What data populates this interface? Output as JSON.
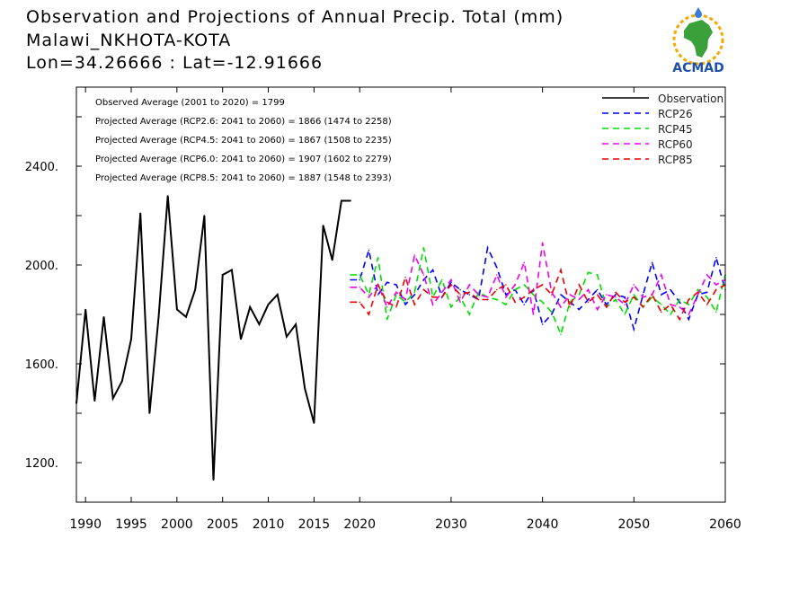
{
  "title": {
    "line1": "Observation and Projections of Annual Precip. Total (mm)",
    "line2": "Malawi_NKHOTA-KOTA",
    "line3": "Lon=34.26666 : Lat=-12.91666"
  },
  "logo": {
    "text": "ACMAD",
    "icon": "africa-map-logo-icon"
  },
  "info_lines": [
    "Observed Average (2001 to 2020) = 1799",
    "Projected Average (RCP2.6: 2041 to 2060) = 1866 (1474 to 2258)",
    "Projected Average (RCP4.5: 2041 to 2060) = 1867 (1508 to 2235)",
    "Projected Average (RCP6.0: 2041 to 2060) = 1907 (1602 to 2279)",
    "Projected Average (RCP8.5: 2041 to 2060) = 1887 (1548 to 2393)"
  ],
  "colors": {
    "Observation": "#000000",
    "RCP26": "#0000ff",
    "RCP45": "#00dd00",
    "RCP60": "#ee00ee",
    "RCP85": "#ee0000"
  },
  "chart_data": {
    "type": "line",
    "xlim": [
      1989,
      2060
    ],
    "ylim": [
      1040,
      2720
    ],
    "x_ticks": [
      1990,
      1995,
      2000,
      2005,
      2010,
      2015,
      2020,
      2030,
      2040,
      2050,
      2060
    ],
    "y_ticks": [
      1200,
      1600,
      2000,
      2400
    ],
    "y_tick_labels": [
      "1200.",
      "1600.",
      "2000.",
      "2400."
    ],
    "legend_position": "top-right",
    "grid": false,
    "series": [
      {
        "name": "Observation",
        "style": "solid",
        "x": [
          1989,
          1990,
          1991,
          1992,
          1993,
          1994,
          1995,
          1996,
          1997,
          1998,
          1999,
          2000,
          2001,
          2002,
          2003,
          2004,
          2005,
          2006,
          2007,
          2008,
          2009,
          2010,
          2011,
          2012,
          2013,
          2014,
          2015,
          2016,
          2017,
          2018,
          2019
        ],
        "values": [
          1440,
          1820,
          1450,
          1790,
          1460,
          1530,
          1700,
          2210,
          1400,
          1790,
          2280,
          1820,
          1790,
          1900,
          2200,
          1130,
          1960,
          1980,
          1700,
          1830,
          1760,
          1840,
          1880,
          1710,
          1760,
          1500,
          1360,
          2160,
          2020,
          2260,
          2260
        ]
      },
      {
        "name": "RCP26",
        "style": "dashed",
        "x": [
          2019,
          2020,
          2021,
          2022,
          2023,
          2024,
          2025,
          2026,
          2027,
          2028,
          2029,
          2030,
          2031,
          2032,
          2033,
          2034,
          2035,
          2036,
          2037,
          2038,
          2039,
          2040,
          2041,
          2042,
          2043,
          2044,
          2045,
          2046,
          2047,
          2048,
          2049,
          2050,
          2051,
          2052,
          2053,
          2054,
          2055,
          2056,
          2057,
          2058,
          2059,
          2060
        ],
        "values": [
          1940,
          1940,
          2060,
          1880,
          1930,
          1920,
          1840,
          1880,
          1940,
          1980,
          1870,
          1930,
          1900,
          1880,
          1860,
          2070,
          1990,
          1880,
          1900,
          1840,
          1900,
          1760,
          1800,
          1880,
          1850,
          1820,
          1860,
          1900,
          1840,
          1880,
          1870,
          1740,
          1880,
          2010,
          1880,
          1900,
          1850,
          1780,
          1880,
          1890,
          2030,
          1900
        ]
      },
      {
        "name": "RCP45",
        "style": "dashed",
        "x": [
          2019,
          2020,
          2021,
          2022,
          2023,
          2024,
          2025,
          2026,
          2027,
          2028,
          2029,
          2030,
          2031,
          2032,
          2033,
          2034,
          2035,
          2036,
          2037,
          2038,
          2039,
          2040,
          2041,
          2042,
          2043,
          2044,
          2045,
          2046,
          2047,
          2048,
          2049,
          2050,
          2051,
          2052,
          2053,
          2054,
          2055,
          2056,
          2057,
          2058,
          2059,
          2060
        ],
        "values": [
          1960,
          1960,
          1880,
          2030,
          1780,
          1880,
          1850,
          1890,
          2070,
          1870,
          1940,
          1830,
          1870,
          1800,
          1890,
          1870,
          1860,
          1840,
          1900,
          1920,
          1880,
          1850,
          1810,
          1720,
          1850,
          1880,
          1970,
          1960,
          1830,
          1860,
          1800,
          1880,
          1830,
          1870,
          1840,
          1800,
          1860,
          1840,
          1900,
          1870,
          1810,
          1960
        ]
      },
      {
        "name": "RCP60",
        "style": "dashed",
        "x": [
          2019,
          2020,
          2021,
          2022,
          2023,
          2024,
          2025,
          2026,
          2027,
          2028,
          2029,
          2030,
          2031,
          2032,
          2033,
          2034,
          2035,
          2036,
          2037,
          2038,
          2039,
          2040,
          2041,
          2042,
          2043,
          2044,
          2045,
          2046,
          2047,
          2048,
          2049,
          2050,
          2051,
          2052,
          2053,
          2054,
          2055,
          2056,
          2057,
          2058,
          2059,
          2060
        ],
        "values": [
          1910,
          1910,
          1870,
          1920,
          1830,
          1890,
          1860,
          2040,
          1960,
          1840,
          1890,
          1940,
          1850,
          1920,
          1880,
          1870,
          1960,
          1870,
          1920,
          2010,
          1800,
          2090,
          1890,
          1830,
          1880,
          1860,
          1900,
          1820,
          1880,
          1870,
          1840,
          1920,
          1870,
          1880,
          1960,
          1840,
          1830,
          1800,
          1880,
          1960,
          1920,
          1940
        ]
      },
      {
        "name": "RCP85",
        "style": "dashed",
        "x": [
          2019,
          2020,
          2021,
          2022,
          2023,
          2024,
          2025,
          2026,
          2027,
          2028,
          2029,
          2030,
          2031,
          2032,
          2033,
          2034,
          2035,
          2036,
          2037,
          2038,
          2039,
          2040,
          2041,
          2042,
          2043,
          2044,
          2045,
          2046,
          2047,
          2048,
          2049,
          2050,
          2051,
          2052,
          2053,
          2054,
          2055,
          2056,
          2057,
          2058,
          2059,
          2060
        ],
        "values": [
          1850,
          1850,
          1800,
          1920,
          1850,
          1830,
          1950,
          1840,
          1900,
          1870,
          1870,
          1920,
          1880,
          1890,
          1860,
          1860,
          1900,
          1920,
          1850,
          1870,
          1900,
          1920,
          1880,
          1980,
          1830,
          1920,
          1850,
          1880,
          1830,
          1890,
          1850,
          1870,
          1830,
          1880,
          1810,
          1840,
          1780,
          1860,
          1890,
          1840,
          1900,
          1920
        ]
      }
    ]
  }
}
